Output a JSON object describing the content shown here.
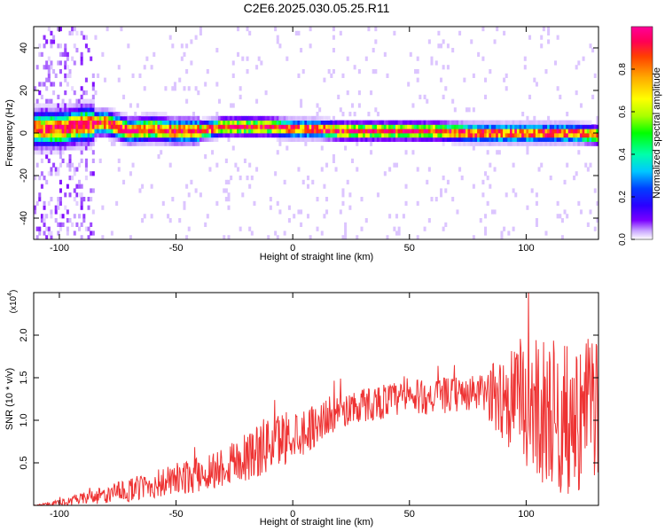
{
  "title": "C2E6.2025.030.05.25.R11",
  "chart_data": [
    {
      "type": "heatmap",
      "xlabel": "Height of straight line (km)",
      "ylabel": "Frequency (Hz)",
      "xlim": [
        -111,
        131
      ],
      "ylim": [
        -50,
        50
      ],
      "xticks": [
        "-100",
        "-50",
        "0",
        "50",
        "100"
      ],
      "yticks": [
        "-40",
        "-20",
        "0",
        "20",
        "40"
      ],
      "colorbar": {
        "label": "Normalized spectral amplitude",
        "range": [
          0,
          1
        ],
        "ticks": [
          "0.0",
          "0.2",
          "0.4",
          "0.6",
          "0.8"
        ],
        "colors": [
          "#ffffff",
          "#c9a6ff",
          "#7a00ff",
          "#2a00ff",
          "#0040ff",
          "#00c8ff",
          "#00ffaa",
          "#00ff00",
          "#aaff00",
          "#ffff00",
          "#ffaa00",
          "#ff4000",
          "#ff0055",
          "#ff0099"
        ]
      },
      "ridge": {
        "x": [
          -111,
          -100,
          -90,
          -80,
          -70,
          -60,
          -50,
          -40,
          -30,
          -20,
          -10,
          0,
          10,
          20,
          40,
          60,
          80,
          100,
          120,
          131
        ],
        "y": [
          2,
          2,
          4,
          5,
          1,
          2,
          1,
          1,
          3,
          3,
          3,
          2,
          2,
          1,
          1,
          1,
          0,
          0,
          0,
          -1
        ]
      }
    },
    {
      "type": "line",
      "xlabel": "Height of straight line (km)",
      "ylabel": "SNR (10 * v/v)",
      "multiplier_label": "(x10",
      "multiplier_exp": "4",
      "multiplier_close": ")",
      "xlim": [
        -111,
        131
      ],
      "ylim": [
        0,
        2.5
      ],
      "xticks": [
        "-100",
        "-50",
        "0",
        "50",
        "100"
      ],
      "yticks": [
        "0.5",
        "1.0",
        "1.5",
        "2.0"
      ],
      "color": "#ee3333",
      "series": [
        {
          "x": [
            -111,
            -100,
            -95,
            -90,
            -80,
            -70,
            -60,
            -50,
            -40,
            -30,
            -20,
            -15,
            -10,
            -5,
            0,
            5,
            10,
            15,
            20,
            30,
            40,
            50,
            60,
            70,
            80,
            85,
            90,
            95,
            100,
            105,
            110,
            115,
            120,
            125,
            131
          ],
          "y": [
            0.0,
            0.03,
            0.05,
            0.08,
            0.12,
            0.18,
            0.24,
            0.3,
            0.36,
            0.46,
            0.58,
            0.64,
            0.72,
            0.78,
            0.85,
            0.88,
            0.95,
            1.05,
            1.1,
            1.18,
            1.23,
            1.26,
            1.28,
            1.3,
            1.32,
            1.3,
            1.28,
            1.25,
            1.2,
            1.15,
            1.08,
            1.0,
            0.95,
            1.1,
            1.2
          ],
          "spread": [
            0.0,
            0.03,
            0.04,
            0.05,
            0.08,
            0.1,
            0.12,
            0.14,
            0.15,
            0.18,
            0.22,
            0.24,
            0.24,
            0.24,
            0.22,
            0.2,
            0.18,
            0.16,
            0.15,
            0.15,
            0.15,
            0.15,
            0.15,
            0.15,
            0.15,
            0.25,
            0.4,
            0.5,
            0.55,
            0.6,
            0.65,
            0.65,
            0.65,
            0.6,
            0.6
          ]
        }
      ]
    }
  ]
}
